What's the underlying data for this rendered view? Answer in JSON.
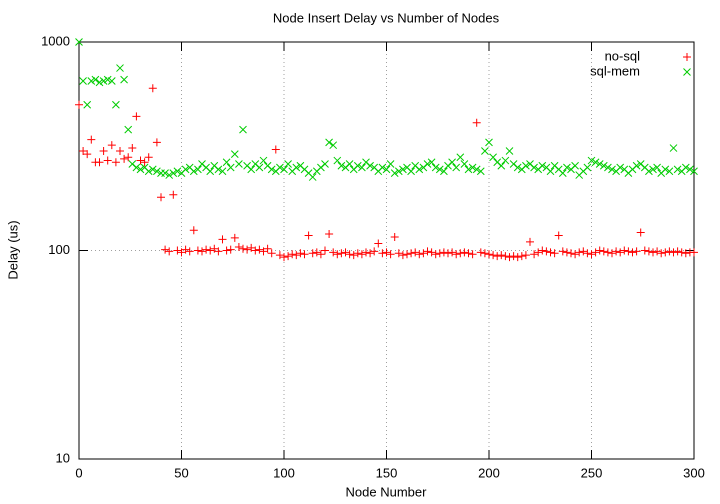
{
  "chart_data": {
    "type": "scatter",
    "title": "Node Insert Delay vs Number of Nodes",
    "x_label": "Node Number",
    "y_label": "Delay (us)",
    "xlim": [
      0,
      300
    ],
    "xticks": [
      0,
      50,
      100,
      150,
      200,
      250,
      300
    ],
    "ylim": [
      10,
      1000
    ],
    "yticks": [
      10,
      100,
      1000
    ],
    "y_scale": "log",
    "grid": true,
    "legend": "top-right",
    "x": [
      0,
      2,
      4,
      6,
      8,
      10,
      12,
      14,
      16,
      18,
      20,
      22,
      24,
      26,
      28,
      30,
      32,
      34,
      36,
      38,
      40,
      42,
      44,
      46,
      48,
      50,
      52,
      54,
      56,
      58,
      60,
      62,
      64,
      66,
      68,
      70,
      72,
      74,
      76,
      78,
      80,
      82,
      84,
      86,
      88,
      90,
      92,
      94,
      96,
      98,
      100,
      102,
      104,
      106,
      108,
      110,
      112,
      114,
      116,
      118,
      120,
      122,
      124,
      126,
      128,
      130,
      132,
      134,
      136,
      138,
      140,
      142,
      144,
      146,
      148,
      150,
      152,
      154,
      156,
      158,
      160,
      162,
      164,
      166,
      168,
      170,
      172,
      174,
      176,
      178,
      180,
      182,
      184,
      186,
      188,
      190,
      192,
      194,
      196,
      198,
      200,
      202,
      204,
      206,
      208,
      210,
      212,
      214,
      216,
      218,
      220,
      222,
      224,
      226,
      228,
      230,
      232,
      234,
      236,
      238,
      240,
      242,
      244,
      246,
      248,
      250,
      252,
      254,
      256,
      258,
      260,
      262,
      264,
      266,
      268,
      270,
      272,
      274,
      276,
      278,
      280,
      282,
      284,
      286,
      288,
      290,
      292,
      294,
      296,
      298,
      300
    ],
    "series": [
      {
        "name": "no-sql",
        "color": "#ff0000",
        "marker": "plus",
        "values": [
          500,
          300,
          290,
          340,
          265,
          265,
          300,
          270,
          320,
          265,
          300,
          275,
          280,
          310,
          440,
          270,
          265,
          280,
          600,
          330,
          180,
          101,
          99,
          185,
          100,
          98,
          101,
          99,
          125,
          100,
          99,
          101,
          100,
          102,
          99,
          113,
          100,
          101,
          115,
          104,
          102,
          101,
          103,
          100,
          101,
          99,
          102,
          97,
          305,
          95,
          93,
          94,
          96,
          95,
          97,
          96,
          118,
          97,
          98,
          96,
          100,
          120,
          98,
          96,
          97,
          98,
          96,
          95,
          97,
          96,
          98,
          97,
          99,
          108,
          97,
          98,
          96,
          116,
          97,
          95,
          96,
          97,
          98,
          96,
          97,
          99,
          98,
          96,
          97,
          98,
          97,
          98,
          96,
          97,
          98,
          97,
          96,
          410,
          98,
          97,
          96,
          95,
          94,
          95,
          94,
          93,
          94,
          93,
          94,
          95,
          110,
          96,
          98,
          100,
          99,
          98,
          97,
          118,
          99,
          98,
          97,
          96,
          98,
          99,
          97,
          96,
          98,
          100,
          99,
          98,
          97,
          99,
          98,
          100,
          99,
          98,
          99,
          122,
          100,
          99,
          98,
          99,
          97,
          98,
          99,
          98,
          99,
          98,
          97,
          98,
          98
        ]
      },
      {
        "name": "sql-mem",
        "color": "#00cc00",
        "marker": "cross",
        "values": [
          1000,
          650,
          500,
          650,
          660,
          640,
          650,
          660,
          650,
          500,
          750,
          660,
          380,
          260,
          250,
          245,
          250,
          240,
          245,
          240,
          235,
          235,
          230,
          235,
          240,
          235,
          245,
          250,
          240,
          245,
          260,
          250,
          240,
          255,
          245,
          240,
          265,
          250,
          290,
          260,
          380,
          255,
          245,
          260,
          250,
          270,
          255,
          245,
          240,
          250,
          245,
          260,
          240,
          250,
          255,
          245,
          235,
          225,
          240,
          250,
          260,
          330,
          320,
          270,
          255,
          250,
          260,
          245,
          255,
          250,
          265,
          255,
          250,
          240,
          250,
          245,
          260,
          235,
          240,
          245,
          250,
          240,
          255,
          245,
          250,
          260,
          265,
          250,
          245,
          240,
          255,
          265,
          250,
          280,
          260,
          245,
          250,
          245,
          240,
          300,
          330,
          280,
          265,
          255,
          270,
          300,
          260,
          250,
          245,
          255,
          260,
          250,
          245,
          255,
          250,
          240,
          255,
          245,
          235,
          250,
          245,
          255,
          230,
          240,
          250,
          270,
          265,
          260,
          255,
          250,
          245,
          240,
          250,
          245,
          235,
          245,
          255,
          260,
          250,
          240,
          245,
          250,
          235,
          245,
          240,
          310,
          245,
          240,
          250,
          245,
          240
        ]
      }
    ]
  }
}
